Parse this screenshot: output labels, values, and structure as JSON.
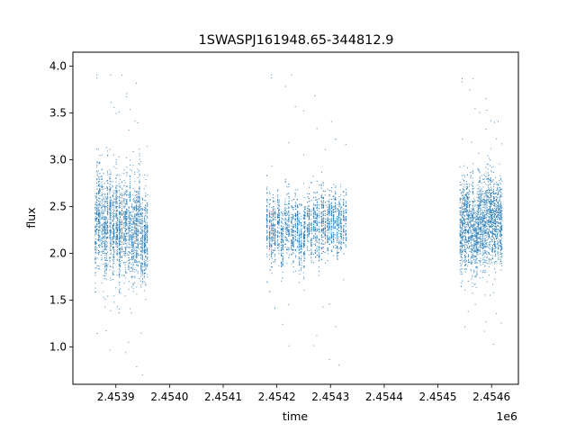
{
  "chart_data": {
    "type": "scatter",
    "title": "1SWASPJ161948.65-344812.9",
    "xlabel": "time",
    "ylabel": "flux",
    "x_offset_label": "1e6",
    "xlim": [
      2.45382,
      2.45465
    ],
    "ylim": [
      0.6,
      4.15
    ],
    "x_ticks": [
      2.4539,
      2.454,
      2.4541,
      2.4542,
      2.4543,
      2.4544,
      2.4545,
      2.4546
    ],
    "x_tick_labels": [
      "2.4539",
      "2.4540",
      "2.4541",
      "2.4542",
      "2.4543",
      "2.4544",
      "2.4545",
      "2.4546"
    ],
    "y_ticks": [
      1.0,
      1.5,
      2.0,
      2.5,
      3.0,
      3.5,
      4.0
    ],
    "y_tick_labels": [
      "1.0",
      "1.5",
      "2.0",
      "2.5",
      "3.0",
      "3.5",
      "4.0"
    ],
    "grid": false,
    "marker_color": "#1f77b4",
    "clusters": [
      {
        "x_start": 2.45386,
        "x_end": 2.45396,
        "median": 2.3,
        "spread": 0.45,
        "y_min": 0.7,
        "y_max": 4.0
      },
      {
        "x_start": 2.45418,
        "x_end": 2.45433,
        "median": 2.25,
        "spread": 0.3,
        "y_min": 0.78,
        "y_max": 4.0
      },
      {
        "x_start": 2.45454,
        "x_end": 2.45462,
        "median": 2.3,
        "spread": 0.4,
        "y_min": 0.95,
        "y_max": 3.95
      }
    ]
  }
}
